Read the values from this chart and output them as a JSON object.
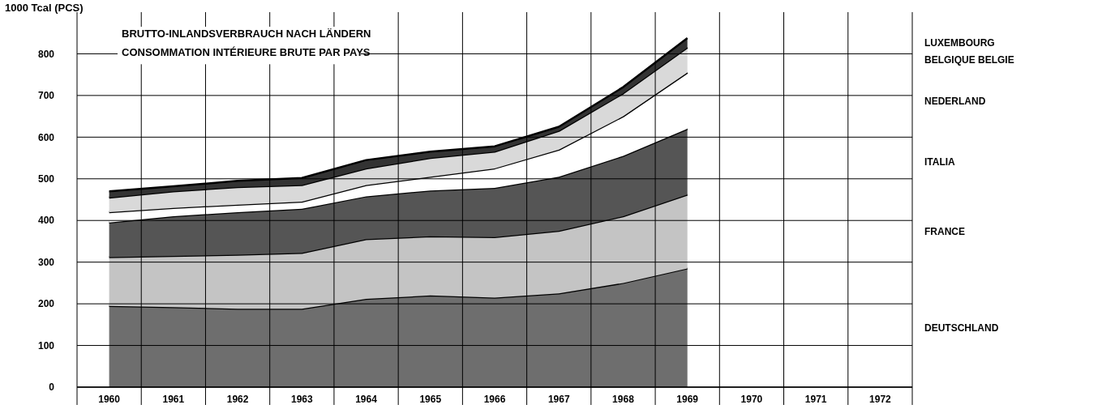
{
  "chart_data": {
    "type": "area",
    "stacked": true,
    "title": "BRUTTO-INLANDSVERBRAUCH NACH LÄNDERN",
    "subtitle": "CONSOMMATION INTÉRIEURE BRUTE PAR PAYS",
    "ylabel": "1000 Tcal (PCS)",
    "categories": [
      "1960",
      "1961",
      "1962",
      "1963",
      "1964",
      "1965",
      "1966",
      "1967",
      "1968",
      "1969",
      "1970",
      "1971",
      "1972"
    ],
    "series": [
      {
        "name": "DEUTSCHLAND",
        "color": "#6e6e6e",
        "values": [
          195,
          192,
          188,
          188,
          212,
          220,
          215,
          225,
          250,
          285,
          null,
          null,
          null
        ]
      },
      {
        "name": "FRANCE",
        "color": "#c4c4c4",
        "values": [
          117,
          123,
          130,
          134,
          143,
          142,
          145,
          150,
          160,
          177,
          null,
          null,
          null
        ]
      },
      {
        "name": "ITALIA",
        "color": "#555555",
        "values": [
          83,
          95,
          102,
          106,
          103,
          110,
          118,
          130,
          145,
          158,
          null,
          null,
          null
        ]
      },
      {
        "name": "NEDERLAND",
        "color": "#ffffff",
        "values": [
          25,
          20,
          18,
          17,
          27,
          33,
          47,
          65,
          95,
          135,
          null,
          null,
          null
        ]
      },
      {
        "name": "BELGIQUE BELGIE",
        "color": "#d9d9d9",
        "values": [
          35,
          40,
          42,
          40,
          40,
          45,
          40,
          45,
          55,
          60,
          null,
          null,
          null
        ]
      },
      {
        "name": "LUXEMBOURG",
        "color": "#333333",
        "values": [
          15,
          12,
          15,
          17,
          20,
          15,
          13,
          10,
          15,
          23,
          null,
          null,
          null
        ]
      }
    ],
    "ylim": [
      0,
      900
    ],
    "yticks": [
      0,
      100,
      200,
      300,
      400,
      500,
      600,
      700,
      800
    ],
    "grid": true,
    "legend": "right"
  }
}
